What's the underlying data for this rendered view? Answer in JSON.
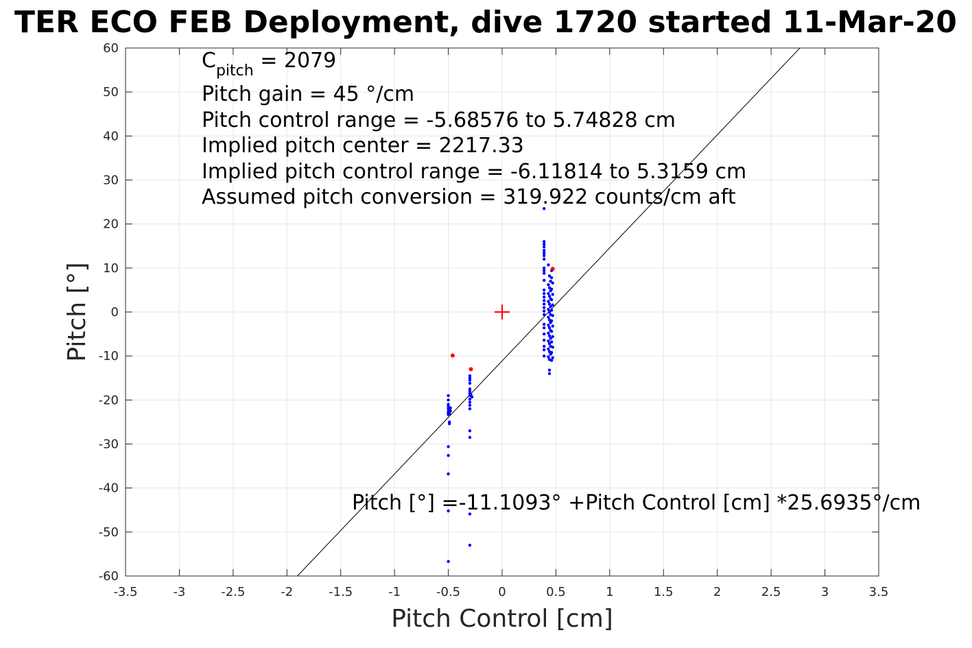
{
  "chart_data": {
    "type": "scatter",
    "title": "TER ECO FEB Deployment, dive 1720 started 11-Mar-20",
    "xlabel": "Pitch Control [cm]",
    "ylabel": "Pitch [°]",
    "xlim": [
      -3.5,
      3.5
    ],
    "ylim": [
      -60,
      60
    ],
    "xticks": [
      -3.5,
      -3,
      -2.5,
      -2,
      -1.5,
      -1,
      -0.5,
      0,
      0.5,
      1,
      1.5,
      2,
      2.5,
      3,
      3.5
    ],
    "xtick_labels": [
      "-3.5",
      "-3",
      "-2.5",
      "-2",
      "-1.5",
      "-1",
      "-0.5",
      "0",
      "0.5",
      "1",
      "1.5",
      "2",
      "2.5",
      "3",
      "3.5"
    ],
    "yticks": [
      60,
      50,
      40,
      30,
      20,
      10,
      0,
      -10,
      -20,
      -30,
      -40,
      -50,
      -60
    ],
    "ytick_labels": [
      "60",
      "50",
      "40",
      "30",
      "20",
      "10",
      "0",
      "-10",
      "-20",
      "-30",
      "-40",
      "-50",
      "-60"
    ],
    "grid": true,
    "annotation_lines": [
      {
        "main": "C",
        "sub": "pitch",
        "rest": " = 2079"
      },
      {
        "main": "Pitch gain = 45 °/cm"
      },
      {
        "main": "Pitch control range = -5.68576 to 5.74828 cm"
      },
      {
        "main": "Implied pitch center = 2217.33"
      },
      {
        "main": "Implied pitch control range = -6.11814 to 5.3159 cm"
      },
      {
        "main": "Assumed pitch conversion = 319.922 counts/cm aft"
      }
    ],
    "fit_label": "Pitch [°] =-11.1093° +Pitch Control [cm] *25.6935°/cm",
    "fit": {
      "intercept": -11.1093,
      "slope": 25.6935,
      "color": "#000000"
    },
    "center_marker": {
      "x": 0,
      "y": 0,
      "color": "#ff0000"
    },
    "series": [
      {
        "color": "#0000ff",
        "points": [
          [
            -0.5,
            -19
          ],
          [
            -0.5,
            -20
          ],
          [
            -0.5,
            -21
          ],
          [
            -0.5,
            -21.5
          ],
          [
            -0.5,
            -22
          ],
          [
            -0.49,
            -22.3
          ],
          [
            -0.5,
            -22.6
          ],
          [
            -0.5,
            -22.9
          ],
          [
            -0.49,
            -23.1
          ],
          [
            -0.5,
            -23.3
          ],
          [
            -0.48,
            -22.5
          ],
          [
            -0.48,
            -21.8
          ],
          [
            -0.49,
            -25
          ],
          [
            -0.49,
            -25.4
          ],
          [
            -0.5,
            -30.6
          ],
          [
            -0.5,
            -32.6
          ],
          [
            -0.5,
            -36.8
          ],
          [
            -0.5,
            -45.2
          ],
          [
            -0.5,
            -56.7
          ],
          [
            -0.3,
            -14.5
          ],
          [
            -0.3,
            -15
          ],
          [
            -0.3,
            -15.5
          ],
          [
            -0.3,
            -16.2
          ],
          [
            -0.3,
            -17.5
          ],
          [
            -0.3,
            -18
          ],
          [
            -0.3,
            -18.5
          ],
          [
            -0.3,
            -19
          ],
          [
            -0.3,
            -19.8
          ],
          [
            -0.29,
            -18.8
          ],
          [
            -0.28,
            -19.3
          ],
          [
            -0.3,
            -20.5
          ],
          [
            -0.3,
            -21.2
          ],
          [
            -0.3,
            -22
          ],
          [
            -0.3,
            -27
          ],
          [
            -0.3,
            -28.5
          ],
          [
            -0.3,
            -45.9
          ],
          [
            -0.3,
            -53
          ],
          [
            0.39,
            23.5
          ],
          [
            0.39,
            16
          ],
          [
            0.39,
            15.4
          ],
          [
            0.39,
            14.8
          ],
          [
            0.39,
            14
          ],
          [
            0.39,
            13.4
          ],
          [
            0.39,
            12.8
          ],
          [
            0.39,
            12
          ],
          [
            0.39,
            10
          ],
          [
            0.39,
            9.4
          ],
          [
            0.39,
            8.8
          ],
          [
            0.39,
            7.2
          ],
          [
            0.39,
            5
          ],
          [
            0.39,
            4.2
          ],
          [
            0.39,
            3.4
          ],
          [
            0.39,
            2.6
          ],
          [
            0.39,
            1.8
          ],
          [
            0.39,
            1
          ],
          [
            0.39,
            0.2
          ],
          [
            0.39,
            -0.6
          ],
          [
            0.39,
            -2.8
          ],
          [
            0.39,
            -3.6
          ],
          [
            0.39,
            -5
          ],
          [
            0.39,
            -6.4
          ],
          [
            0.39,
            -7.8
          ],
          [
            0.39,
            -8.6
          ],
          [
            0.39,
            -10
          ],
          [
            0.43,
            10.7
          ],
          [
            0.44,
            8.2
          ],
          [
            0.45,
            7
          ],
          [
            0.43,
            6.2
          ],
          [
            0.44,
            5.5
          ],
          [
            0.45,
            4.8
          ],
          [
            0.43,
            4.2
          ],
          [
            0.44,
            3.6
          ],
          [
            0.45,
            3
          ],
          [
            0.43,
            2.4
          ],
          [
            0.44,
            1.8
          ],
          [
            0.45,
            1.2
          ],
          [
            0.43,
            0.6
          ],
          [
            0.44,
            0
          ],
          [
            0.45,
            -0.6
          ],
          [
            0.43,
            -1.2
          ],
          [
            0.44,
            -1.8
          ],
          [
            0.45,
            -2.4
          ],
          [
            0.43,
            -3
          ],
          [
            0.44,
            -3.6
          ],
          [
            0.45,
            -4.2
          ],
          [
            0.43,
            -4.8
          ],
          [
            0.44,
            -5.4
          ],
          [
            0.45,
            -6
          ],
          [
            0.43,
            -6.6
          ],
          [
            0.44,
            -7.2
          ],
          [
            0.45,
            -7.8
          ],
          [
            0.43,
            -8.4
          ],
          [
            0.44,
            -9
          ],
          [
            0.45,
            -9.6
          ],
          [
            0.43,
            -10.2
          ],
          [
            0.44,
            -10.8
          ],
          [
            0.44,
            -13.2
          ],
          [
            0.44,
            -14
          ],
          [
            0.46,
            9.4
          ],
          [
            0.46,
            7.8
          ],
          [
            0.47,
            6.6
          ],
          [
            0.46,
            5.2
          ],
          [
            0.47,
            4
          ],
          [
            0.46,
            2.8
          ],
          [
            0.47,
            1.6
          ],
          [
            0.46,
            0.4
          ],
          [
            0.47,
            -0.8
          ],
          [
            0.46,
            -2
          ],
          [
            0.47,
            -3.2
          ],
          [
            0.46,
            -4.4
          ],
          [
            0.47,
            -5.6
          ],
          [
            0.46,
            -6.8
          ],
          [
            0.47,
            -8
          ],
          [
            0.46,
            -9.2
          ],
          [
            0.47,
            -10.4
          ],
          [
            0.46,
            -11
          ]
        ]
      },
      {
        "color": "#ff0000",
        "points": [
          [
            -0.46,
            -9.9
          ],
          [
            -0.29,
            -13
          ],
          [
            0.47,
            9.8
          ]
        ]
      }
    ]
  }
}
